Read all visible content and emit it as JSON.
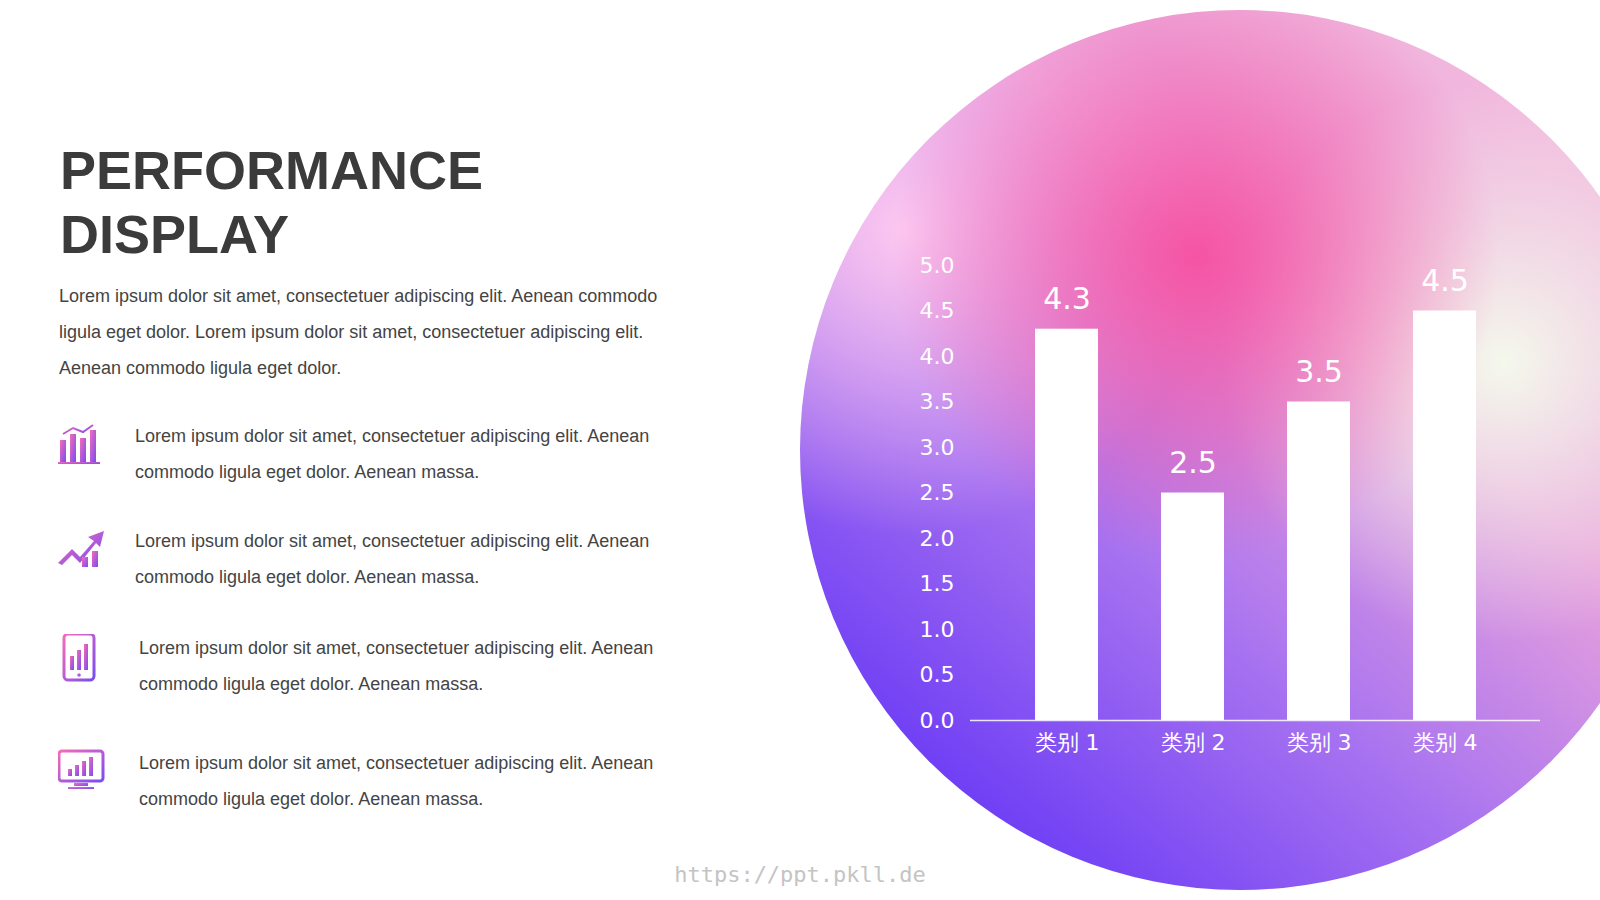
{
  "slide": {
    "title": "PERFORMANCE DISPLAY",
    "intro": "Lorem ipsum dolor sit amet, consectetuer adipiscing elit. Aenean commodo ligula eget dolor. Lorem ipsum dolor sit amet, consectetuer adipiscing elit. Aenean commodo ligula eget dolor.",
    "items": [
      "Lorem ipsum dolor sit amet, consectetuer adipiscing elit. Aenean commodo ligula eget dolor. Aenean massa.",
      "Lorem ipsum dolor sit amet, consectetuer adipiscing elit. Aenean commodo ligula eget dolor. Aenean massa.",
      "Lorem ipsum dolor sit amet, consectetuer adipiscing elit. Aenean commodo ligula eget dolor. Aenean massa.",
      "Lorem ipsum dolor sit amet, consectetuer adipiscing elit. Aenean commodo ligula eget dolor. Aenean massa."
    ],
    "watermark": "https://ppt.pkll.de"
  },
  "chart_data": {
    "type": "bar",
    "categories": [
      "类别 1",
      "类别 2",
      "类别 3",
      "类别 4"
    ],
    "values": [
      4.3,
      2.5,
      3.5,
      4.5
    ],
    "color": "#ffffff",
    "ylim": [
      0,
      5
    ],
    "yticks": [
      0,
      0.5,
      1,
      1.5,
      2,
      2.5,
      3,
      3.5,
      4,
      4.5,
      5
    ],
    "grid": false,
    "data_labels": true
  }
}
